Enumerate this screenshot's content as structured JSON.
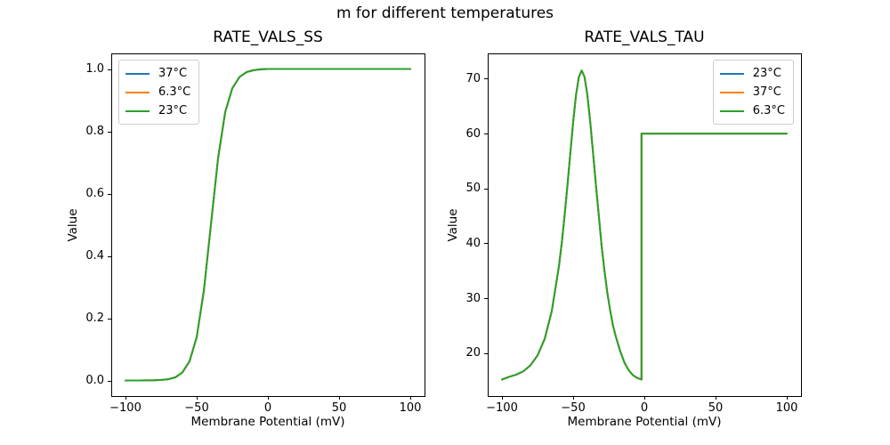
{
  "figure": {
    "suptitle": "m for different temperatures",
    "background": "#ffffff",
    "text_color": "#000000",
    "spine_color": "#000000"
  },
  "chart_data": [
    {
      "type": "line",
      "title": "RATE_VALS_SS",
      "xlabel": "Membrane Potential (mV)",
      "ylabel": "Value",
      "xlim": [
        -110,
        110
      ],
      "ylim": [
        -0.05,
        1.05
      ],
      "grid": false,
      "xticks": {
        "values": [
          -100,
          -50,
          0,
          50,
          100
        ],
        "labels": [
          "−100",
          "−50",
          "0",
          "50",
          "100"
        ]
      },
      "yticks": {
        "values": [
          0.0,
          0.2,
          0.4,
          0.6,
          0.8,
          1.0
        ],
        "labels": [
          "0.0",
          "0.2",
          "0.4",
          "0.6",
          "0.8",
          "1.0"
        ]
      },
      "legend": {
        "position": "upper-left",
        "entries": [
          {
            "label": "37°C",
            "color": "#1f77b4"
          },
          {
            "label": "6.3°C",
            "color": "#ff7f0e"
          },
          {
            "label": "23°C",
            "color": "#2ca02c"
          }
        ]
      },
      "note": "All three temperature curves coincide exactly; only the last-drawn series (23°C, green) is visible. Sigmoid rising from 0 to 1 with midpoint near −40 mV, flat at 1.0 for V ≥ 0.",
      "x": [
        -100,
        -95,
        -90,
        -85,
        -80,
        -75,
        -70,
        -65,
        -60,
        -55,
        -50,
        -45,
        -40,
        -35,
        -30,
        -25,
        -20,
        -15,
        -10,
        -5,
        0,
        10,
        20,
        30,
        40,
        50,
        60,
        70,
        80,
        90,
        100
      ],
      "series": [
        {
          "label": "37°C",
          "color": "#1f77b4"
        },
        {
          "label": "6.3°C",
          "color": "#ff7f0e"
        },
        {
          "label": "23°C",
          "color": "#2ca02c"
        }
      ],
      "values": [
        0.0,
        0.0,
        0.0001,
        0.0003,
        0.0007,
        0.0017,
        0.004,
        0.01,
        0.026,
        0.062,
        0.139,
        0.287,
        0.5,
        0.713,
        0.861,
        0.938,
        0.974,
        0.99,
        0.996,
        0.999,
        1.0,
        1.0,
        1.0,
        1.0,
        1.0,
        1.0,
        1.0,
        1.0,
        1.0,
        1.0,
        1.0
      ]
    },
    {
      "type": "line",
      "title": "RATE_VALS_TAU",
      "xlabel": "Membrane Potential (mV)",
      "ylabel": "Value",
      "xlim": [
        -110,
        110
      ],
      "ylim": [
        12.2,
        74.6
      ],
      "grid": false,
      "xticks": {
        "values": [
          -100,
          -50,
          0,
          50,
          100
        ],
        "labels": [
          "−100",
          "−50",
          "0",
          "50",
          "100"
        ]
      },
      "yticks": {
        "values": [
          20,
          30,
          40,
          50,
          60,
          70
        ],
        "labels": [
          "20",
          "30",
          "40",
          "50",
          "60",
          "70"
        ]
      },
      "legend": {
        "position": "upper-right",
        "entries": [
          {
            "label": "23°C",
            "color": "#1f77b4"
          },
          {
            "label": "37°C",
            "color": "#ff7f0e"
          },
          {
            "label": "6.3°C",
            "color": "#2ca02c"
          }
        ]
      },
      "note": "All three temperature curves coincide exactly; only the last-drawn series (6.3°C, green) is visible. Bell-shaped peak of ≈71.5 at ≈−44 mV over a ≈15 baseline, discontinuous jump at ≈−2 mV to a constant 60 for V > 0.",
      "x": [
        -100,
        -95,
        -90,
        -85,
        -80,
        -75,
        -70,
        -65,
        -60,
        -58,
        -56,
        -54,
        -52,
        -50,
        -48,
        -46,
        -44,
        -42,
        -40,
        -38,
        -36,
        -34,
        -32,
        -30,
        -28,
        -26,
        -24,
        -22,
        -20,
        -17,
        -14,
        -11,
        -8,
        -5,
        -3,
        -2,
        -2,
        0,
        10,
        25,
        50,
        75,
        100
      ],
      "series": [
        {
          "label": "23°C",
          "color": "#1f77b4"
        },
        {
          "label": "37°C",
          "color": "#ff7f0e"
        },
        {
          "label": "6.3°C",
          "color": "#2ca02c"
        }
      ],
      "values": [
        15.2,
        15.7,
        16.1,
        16.7,
        17.8,
        19.6,
        22.6,
        27.7,
        35.8,
        40.1,
        45.1,
        50.6,
        56.4,
        62.1,
        67.0,
        70.3,
        71.5,
        70.3,
        67.0,
        62.1,
        56.4,
        50.6,
        45.1,
        39.5,
        35.0,
        31.0,
        27.8,
        25.0,
        23.0,
        20.4,
        18.3,
        16.9,
        16.0,
        15.5,
        15.3,
        15.2,
        60.0,
        60.0,
        60.0,
        60.0,
        60.0,
        60.0,
        60.0
      ]
    }
  ]
}
